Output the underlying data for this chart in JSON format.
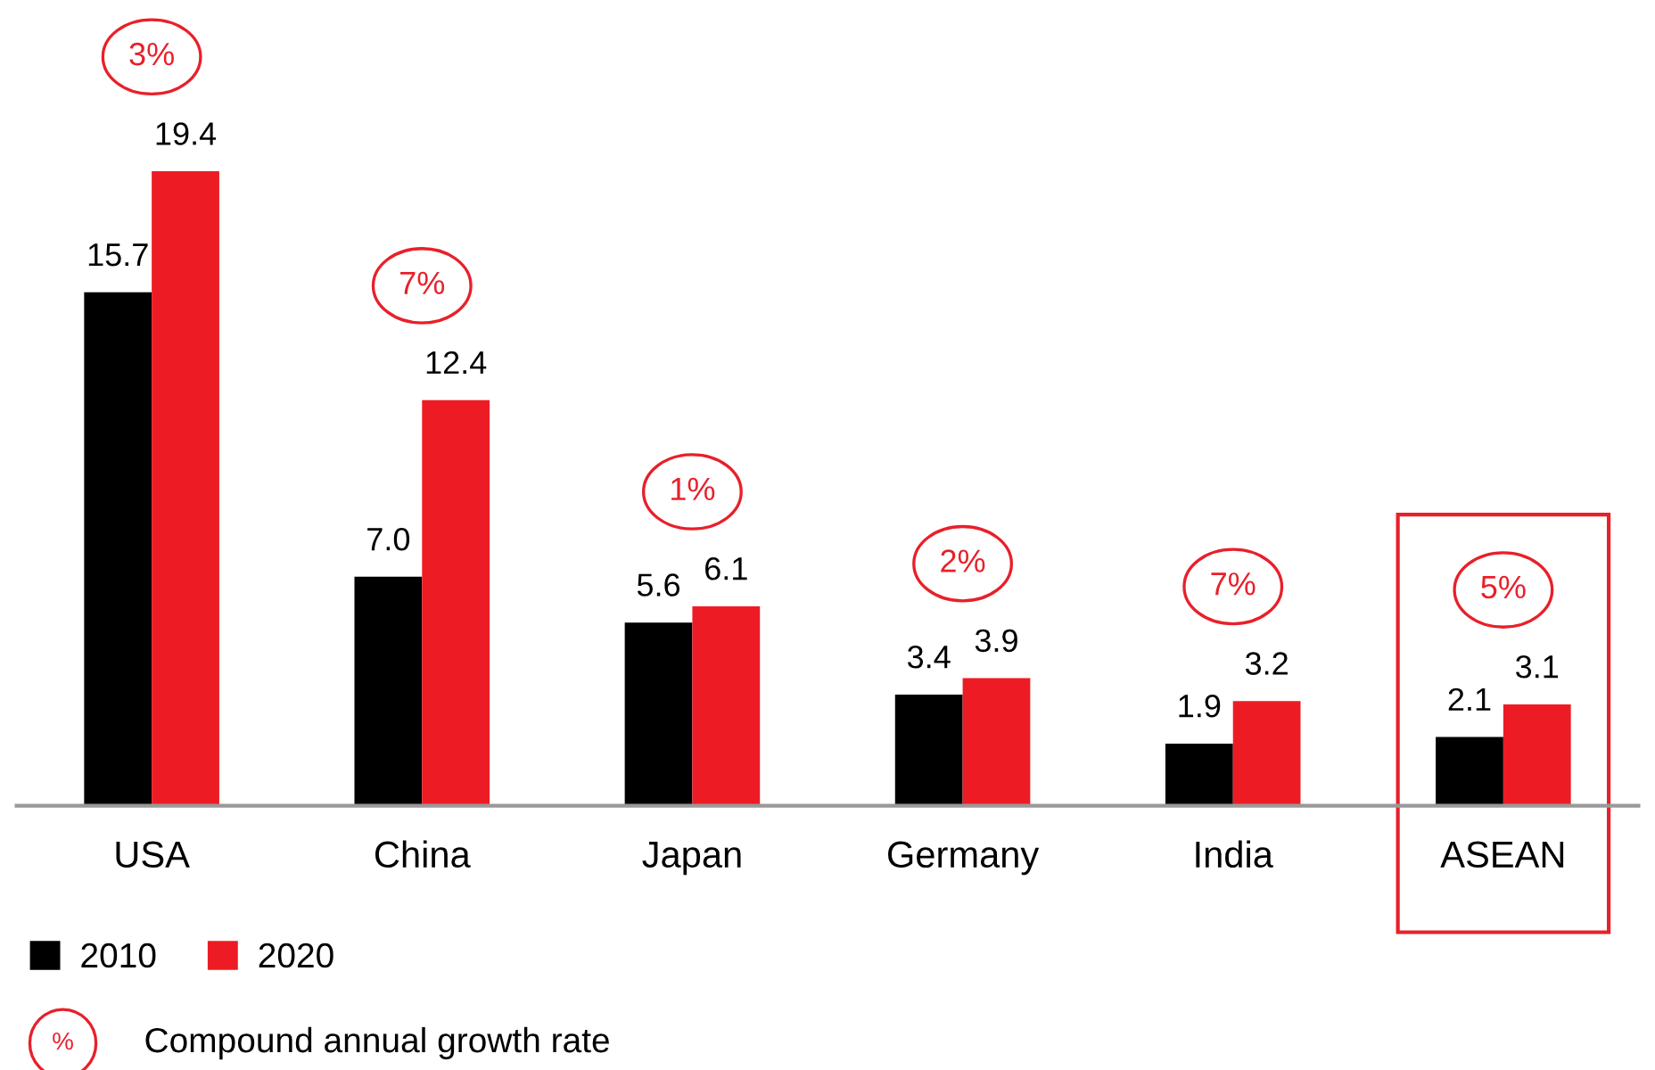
{
  "chart_data": {
    "type": "bar",
    "categories": [
      "USA",
      "China",
      "Japan",
      "Germany",
      "India",
      "ASEAN"
    ],
    "series": [
      {
        "name": "2010",
        "color": "#000000",
        "values": [
          15.7,
          7.0,
          5.6,
          3.4,
          1.9,
          2.1
        ],
        "value_labels": [
          "15.7",
          "7.0",
          "5.6",
          "3.4",
          "1.9",
          "2.1"
        ]
      },
      {
        "name": "2020",
        "color": "#ed1c24",
        "values": [
          19.4,
          12.4,
          6.1,
          3.9,
          3.2,
          3.1
        ],
        "value_labels": [
          "19.4",
          "12.4",
          "6.1",
          "3.9",
          "3.2",
          "3.1"
        ]
      }
    ],
    "annotations": [
      "3%",
      "7%",
      "1%",
      "2%",
      "7%",
      "5%",
      "%",
      "Compound annual growth rate"
    ],
    "legend": "bottom left",
    "grid": false
  }
}
